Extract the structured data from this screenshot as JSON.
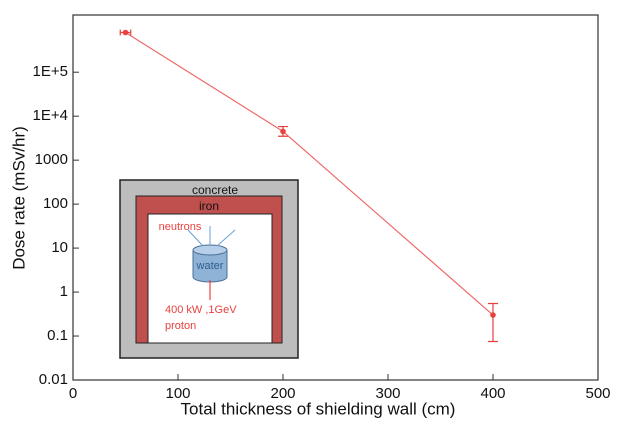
{
  "chart_data": {
    "type": "line",
    "xlabel": "Total thickness of shielding wall (cm)",
    "ylabel": "Dose rate (mSv/hr)",
    "x": [
      50,
      200,
      400
    ],
    "series": [
      {
        "color": "#e8413e",
        "values": [
          800000,
          4500,
          0.3
        ],
        "y_lower": [
          null,
          3500,
          0.075
        ],
        "y_upper": [
          null,
          5800,
          0.55
        ],
        "x_lower": [
          45,
          null,
          null
        ],
        "x_upper": [
          55,
          null,
          null
        ]
      }
    ],
    "xlim": [
      0,
      500
    ],
    "xticks": [
      0,
      100,
      200,
      300,
      400,
      500
    ],
    "ylim": [
      0.01,
      2000000
    ],
    "log_y": true,
    "yticks": [
      0.01,
      0.1,
      1,
      10,
      100,
      1000,
      {
        "value": 10000,
        "label": "1E+4"
      },
      {
        "value": 100000,
        "label": "1E+5"
      }
    ],
    "annotations": [
      "concrete",
      "iron",
      "neutrons",
      "water",
      "400 kW ,1GeV",
      "proton"
    ]
  }
}
